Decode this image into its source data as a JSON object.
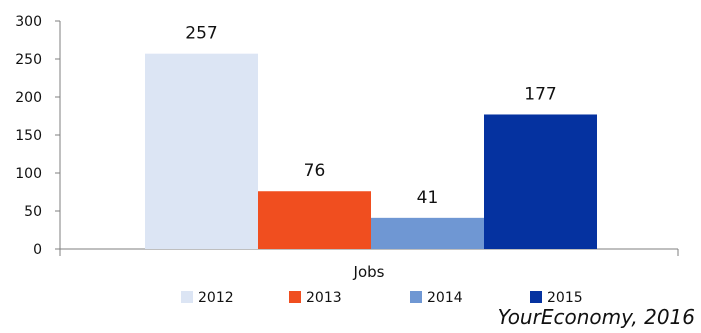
{
  "chart_data": {
    "type": "bar",
    "categories": [
      "Jobs"
    ],
    "series": [
      {
        "name": "2012",
        "values": [
          257
        ],
        "color": "#dce5f4"
      },
      {
        "name": "2013",
        "values": [
          76
        ],
        "color": "#f04e1f"
      },
      {
        "name": "2014",
        "values": [
          41
        ],
        "color": "#6f97d3"
      },
      {
        "name": "2015",
        "values": [
          177
        ],
        "color": "#0532a0"
      }
    ],
    "ylim": [
      0,
      300
    ],
    "yticks": [
      0,
      50,
      100,
      150,
      200,
      250,
      300
    ],
    "grid": false,
    "legend": "bottom",
    "data_labels": true
  },
  "source_note": "YourEconomy, 2016"
}
